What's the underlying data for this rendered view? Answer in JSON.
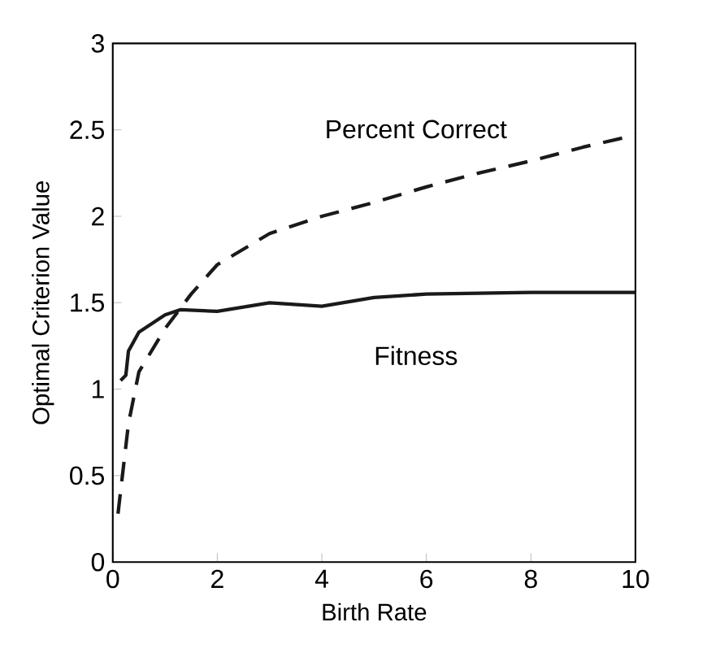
{
  "chart_data": {
    "type": "line",
    "xlabel": "Birth Rate",
    "ylabel": "Optimal Criterion Value",
    "xlim": [
      0,
      10
    ],
    "ylim": [
      0,
      3
    ],
    "xticks": [
      0,
      2,
      4,
      6,
      8,
      10
    ],
    "yticks": [
      0,
      {
        "value": 0.5,
        "label": "0.5"
      },
      1,
      {
        "value": 1.5,
        "label": "1.5"
      },
      2,
      {
        "value": 2.5,
        "label": "2.5"
      },
      3
    ],
    "grid": false,
    "marker": "none",
    "series": [
      {
        "name": "Percent Correct",
        "color": "#1a1a1a",
        "line_style": "dashed",
        "x": [
          0.1,
          0.3,
          0.5,
          1,
          1.5,
          2,
          3,
          4,
          5,
          6,
          7,
          8,
          9,
          10
        ],
        "values": [
          0.28,
          0.8,
          1.1,
          1.35,
          1.55,
          1.72,
          1.9,
          2.0,
          2.08,
          2.17,
          2.25,
          2.32,
          2.4,
          2.47
        ]
      },
      {
        "name": "Fitness",
        "color": "#1a1a1a",
        "line_style": "solid",
        "x": [
          0.15,
          0.25,
          0.3,
          0.5,
          1,
          1.3,
          2,
          3,
          4,
          5,
          6,
          8,
          10
        ],
        "values": [
          1.05,
          1.08,
          1.22,
          1.33,
          1.43,
          1.46,
          1.45,
          1.5,
          1.48,
          1.53,
          1.55,
          1.56,
          1.56
        ]
      }
    ]
  }
}
